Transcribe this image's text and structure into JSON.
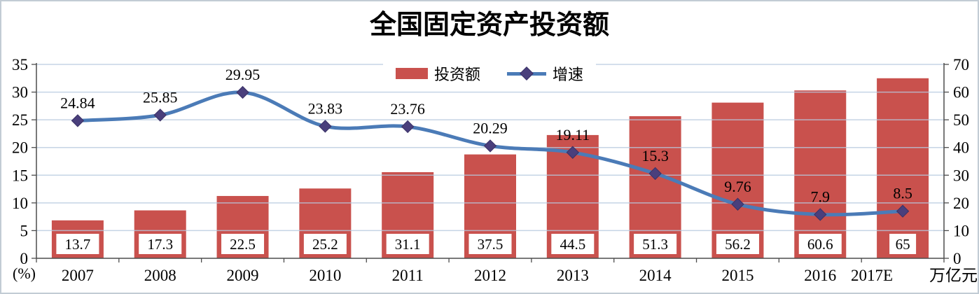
{
  "colors": {
    "bar": "#c9514d",
    "line": "#4b7bb7",
    "marker": "#4a3f7c",
    "marker_edge": "#3a3166",
    "grid": "#b7c9df",
    "axis": "#4d4d4d",
    "border": "#c2ccd4",
    "text": "#000000",
    "label_box": "#ffffff",
    "background": "#ffffff"
  },
  "chart_data": {
    "type": "combo",
    "title": "全国固定资产投资额",
    "categories": [
      "2007",
      "2008",
      "2009",
      "2010",
      "2011",
      "2012",
      "2013",
      "2014",
      "2015",
      "2016",
      "2017E"
    ],
    "series": [
      {
        "name": "投资额",
        "type": "bar",
        "axis": "right",
        "unit": "万亿元",
        "color": "#c9514d",
        "values": [
          13.7,
          17.3,
          22.5,
          25.2,
          31.1,
          37.5,
          44.5,
          51.3,
          56.2,
          60.6,
          65
        ]
      },
      {
        "name": "增速",
        "type": "line",
        "axis": "left",
        "unit": "%",
        "color": "#4b7bb7",
        "marker": "diamond",
        "marker_color": "#4a3f7c",
        "smooth": true,
        "values": [
          24.84,
          25.85,
          29.95,
          23.83,
          23.76,
          20.29,
          19.11,
          15.3,
          9.76,
          7.9,
          8.5
        ]
      }
    ],
    "left_axis": {
      "label": "(%)",
      "min": 0,
      "max": 35,
      "step": 5,
      "ticks": [
        "0",
        "5",
        "10",
        "15",
        "20",
        "25",
        "30",
        "35"
      ]
    },
    "right_axis": {
      "label": "万亿元",
      "min": 0,
      "max": 70,
      "step": 10,
      "ticks": [
        "0",
        "10",
        "20",
        "30",
        "40",
        "50",
        "60",
        "70"
      ]
    },
    "legend": {
      "position": "top",
      "entries": [
        "投资额",
        "增速"
      ]
    },
    "grid": true
  }
}
